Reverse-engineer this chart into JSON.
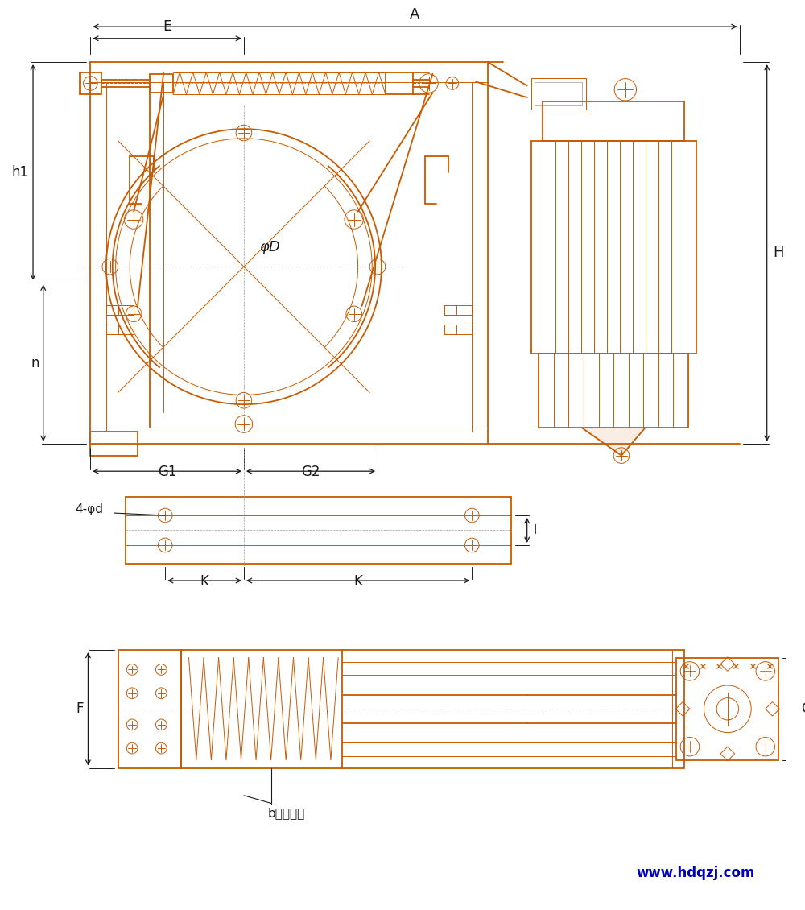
{
  "bg_color": "#ffffff",
  "draw_color": "#C85A00",
  "dim_color": "#1a1a1a",
  "lw": 1.3,
  "tlw": 0.7,
  "fig_width": 10.0,
  "fig_height": 11.3,
  "website_text": "www.hdqzj.com",
  "website_color": "#0000BB",
  "labels": {
    "E": "E",
    "A": "A",
    "H": "H",
    "h1": "h1",
    "n": "n",
    "G1": "G1",
    "G2": "G2",
    "phiD": "φD",
    "K1": "K",
    "K2": "K",
    "phi_d": "4-φd",
    "F": "F",
    "C": "C",
    "b": "b（瓦宽）",
    "l": "l"
  }
}
